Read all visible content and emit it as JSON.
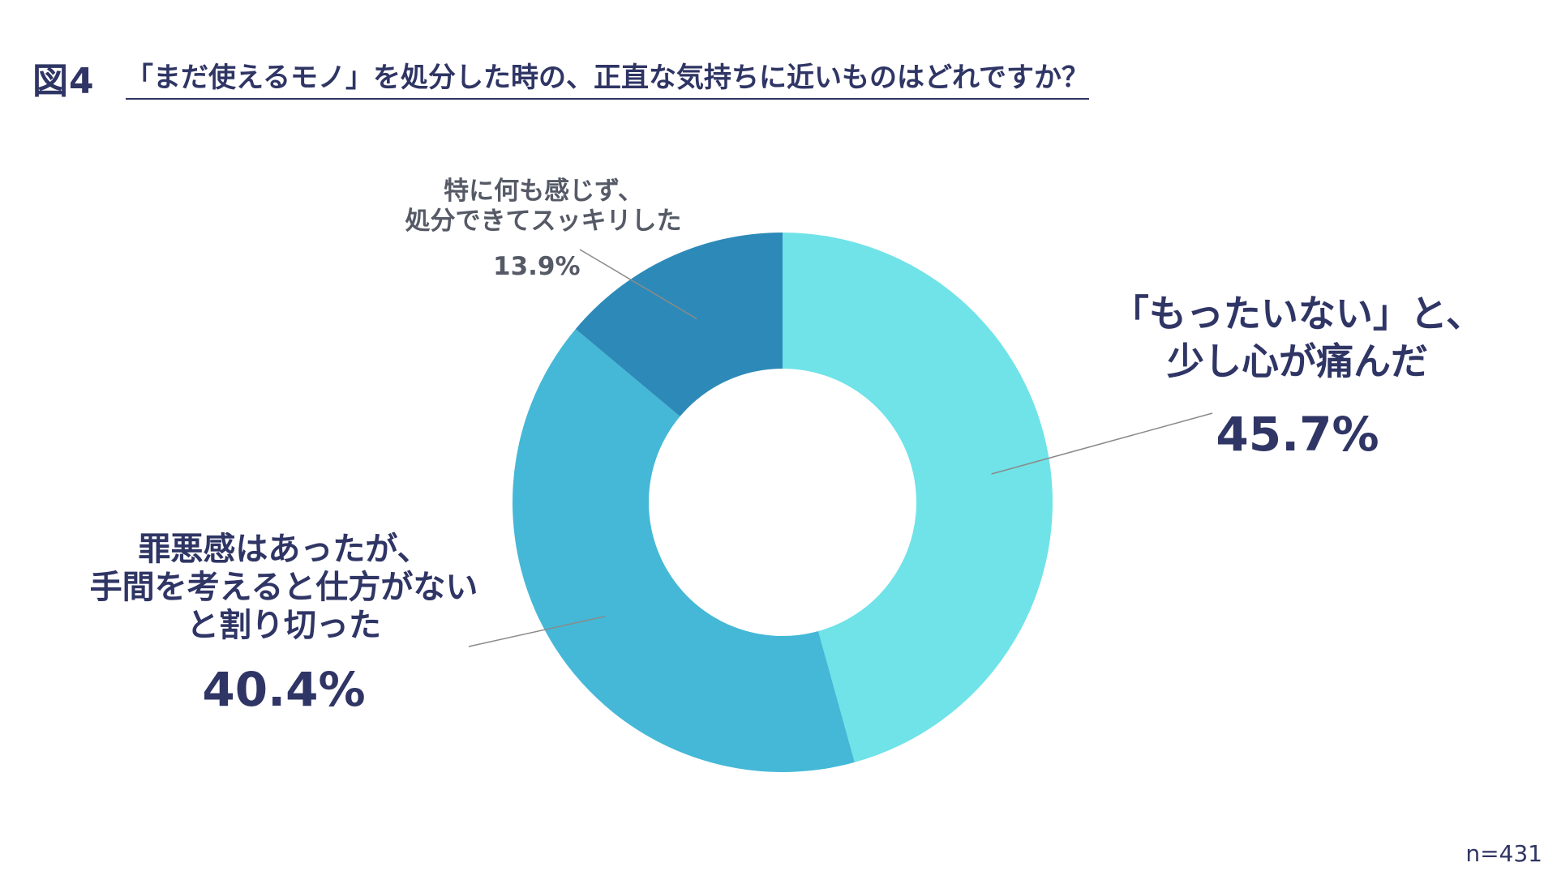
{
  "figure": {
    "number": "図4",
    "question": "「まだ使えるモノ」を処分した時の、正直な気持ちに近いものはどれですか？"
  },
  "sample_size": "n=431",
  "chart_data": {
    "type": "pie",
    "variant": "donut",
    "start_angle_deg": 0,
    "direction": "clockwise",
    "slices": [
      {
        "label": "「もったいない」と、少し心が痛んだ",
        "label_lines": [
          "「もったいない」と、",
          "少し心が痛んだ"
        ],
        "value": 45.7,
        "display": "45.7%",
        "color": "#6fe3e8"
      },
      {
        "label": "罪悪感はあったが、手間を考えると仕方がないと割り切った",
        "label_lines": [
          "罪悪感はあったが、",
          "手間を考えると仕方がない",
          "と割り切った"
        ],
        "value": 40.4,
        "display": "40.4%",
        "color": "#45b8d7"
      },
      {
        "label": "特に何も感じず、処分できてスッキリした",
        "label_lines": [
          "特に何も感じず、",
          "処分できてスッキリした"
        ],
        "value": 13.9,
        "display": "13.9%",
        "color": "#2d8ab8"
      }
    ],
    "colors": {
      "leader_line": "#8a8a8a",
      "text_main": "#2f3564",
      "text_muted": "#555a66"
    }
  }
}
